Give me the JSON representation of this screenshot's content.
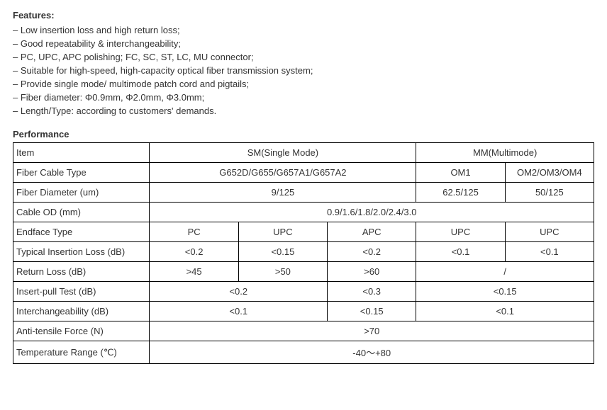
{
  "features": {
    "title": "Features:",
    "items": [
      "– Low insertion loss and high return loss;",
      "– Good repeatability & interchangeability;",
      "– PC, UPC, APC polishing; FC, SC, ST, LC, MU connector;",
      "– Suitable for high-speed, high-capacity optical fiber transmission system;",
      "– Provide single mode/ multimode patch cord and pigtails;",
      "– Fiber diameter: Φ0.9mm, Φ2.0mm, Φ3.0mm;",
      "– Length/Type: according to customers' demands."
    ]
  },
  "performance": {
    "title": "Performance",
    "header": {
      "item": "Item",
      "sm": "SM(Single Mode)",
      "mm": "MM(Multimode)"
    },
    "rows": {
      "fiber_cable_type": {
        "label": "Fiber Cable Type",
        "sm": "G652D/G655/G657A1/G657A2",
        "mm1": "OM1",
        "mm2": "OM2/OM3/OM4"
      },
      "fiber_diameter": {
        "label": "Fiber Diameter (um)",
        "sm": "9/125",
        "mm1": "62.5/125",
        "mm2": "50/125"
      },
      "cable_od": {
        "label": "Cable OD (mm)",
        "all": "0.9/1.6/1.8/2.0/2.4/3.0"
      },
      "endface": {
        "label": "Endface Type",
        "c1": "PC",
        "c2": "UPC",
        "c3": "APC",
        "c4": "UPC",
        "c5": "UPC"
      },
      "insertion_loss": {
        "label": "Typical Insertion Loss (dB)",
        "c1": "<0.2",
        "c2": "<0.15",
        "c3": "<0.2",
        "c4": "<0.1",
        "c5": "<0.1"
      },
      "return_loss": {
        "label": "Return Loss (dB)",
        "c1": ">45",
        "c2": ">50",
        "c3": ">60",
        "c45": "/"
      },
      "insert_pull": {
        "label": "Insert-pull Test (dB)",
        "c12": "<0.2",
        "c3": "<0.3",
        "c45": "<0.15"
      },
      "interchangeability": {
        "label": "Interchangeability (dB)",
        "c12": "<0.1",
        "c3": "<0.15",
        "c45": "<0.1"
      },
      "anti_tensile": {
        "label": "Anti-tensile Force (N)",
        "all": ">70"
      },
      "temp_range": {
        "label": "Temperature Range (℃)",
        "all": "-40～+80"
      }
    }
  }
}
